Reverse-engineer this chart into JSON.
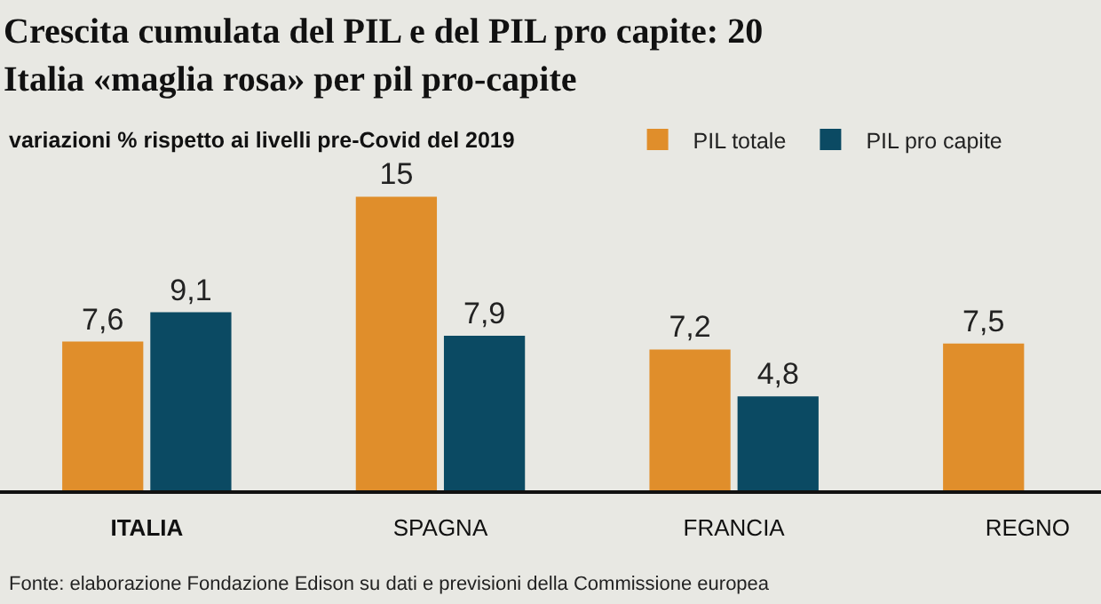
{
  "chart_data": {
    "type": "bar",
    "title": "Crescita cumulata del PIL e del PIL pro capite: 20\nItalia «maglia rosa» per pil pro-capite",
    "subtitle": "variazioni % rispetto ai livelli pre-Covid del 2019",
    "categories": [
      "ITALIA",
      "SPAGNA",
      "FRANCIA",
      "REGNO"
    ],
    "series": [
      {
        "name": "PIL totale",
        "color": "#e08e2b",
        "values": [
          7.6,
          15,
          7.2,
          7.5
        ],
        "value_labels": [
          "7,6",
          "15",
          "7,2",
          "7,5"
        ]
      },
      {
        "name": "PIL pro capite",
        "color": "#0b4a63",
        "values": [
          9.1,
          7.9,
          4.8,
          null
        ],
        "value_labels": [
          "9,1",
          "7,9",
          "4,8",
          null
        ]
      }
    ],
    "legend": "top",
    "grid": false,
    "tick_labels": "x",
    "annotations": [
      "Fonte: elaborazione Fondazione Edison su dati e previsioni della Commissione europea"
    ]
  }
}
